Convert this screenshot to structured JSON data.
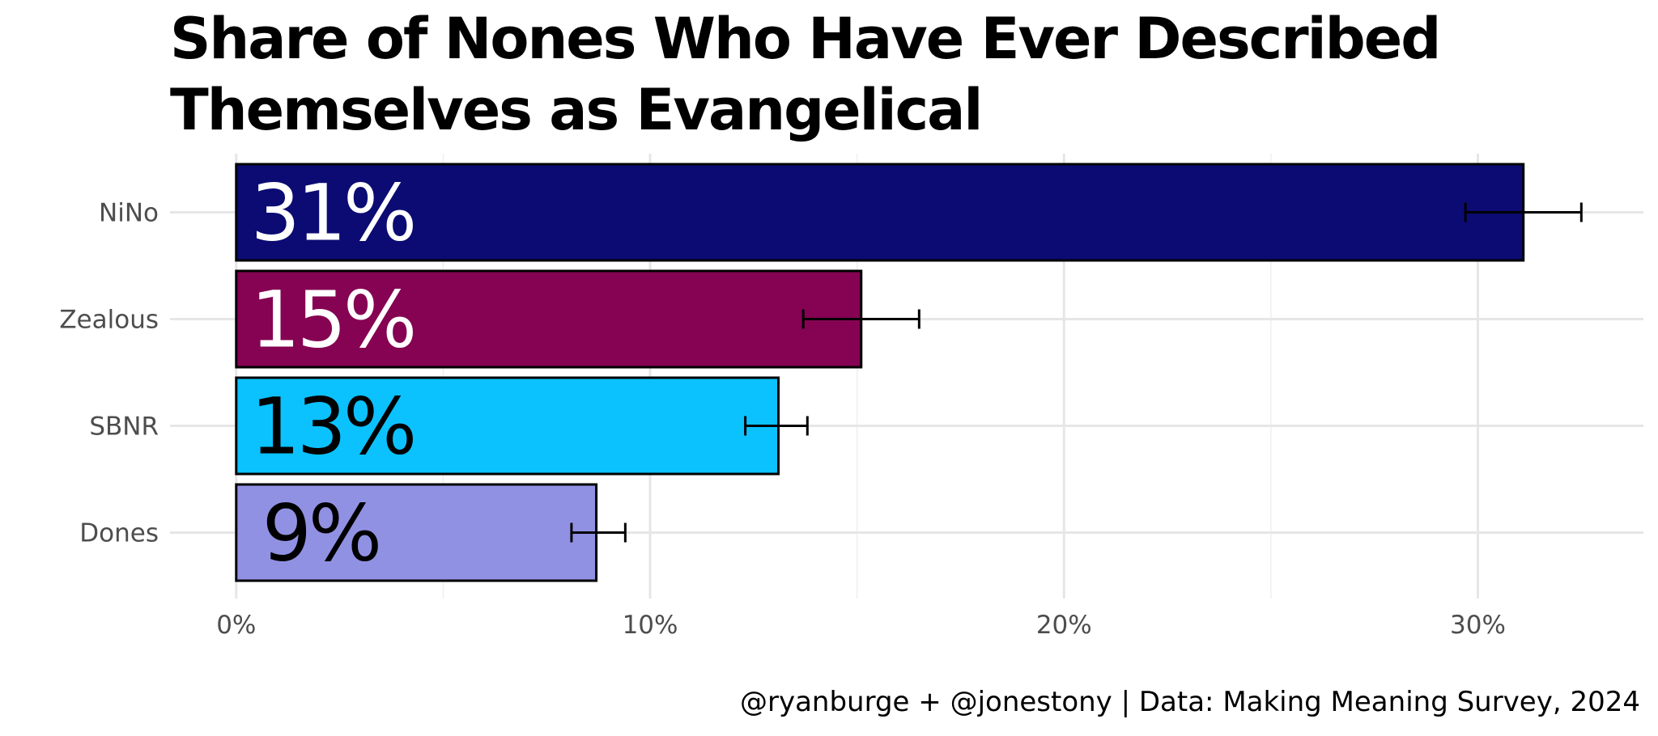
{
  "chart_data": {
    "type": "bar",
    "orientation": "horizontal",
    "title": "Share of Nones Who Have Ever Described Themselves as Evangelical",
    "categories": [
      "NiNo",
      "Zealous",
      "SBNR",
      "Dones"
    ],
    "values": [
      0.311,
      0.151,
      0.131,
      0.087
    ],
    "value_labels": [
      "31%",
      "15%",
      "13%",
      "9%"
    ],
    "error_low": [
      0.297,
      0.137,
      0.123,
      0.081
    ],
    "error_high": [
      0.325,
      0.165,
      0.138,
      0.094
    ],
    "colors": [
      "#0b0b73",
      "#850352",
      "#0bc2ff",
      "#9191e4"
    ],
    "label_colors": [
      "#ffffff",
      "#ffffff",
      "#000000",
      "#000000"
    ],
    "xlim": [
      -0.016,
      0.34
    ],
    "x_ticks": [
      0,
      0.1,
      0.2,
      0.3
    ],
    "x_tick_labels": [
      "0%",
      "10%",
      "20%",
      "30%"
    ],
    "grid": true,
    "legend": "none",
    "caption": "@ryanburge + @jonestony | Data: Making Meaning Survey, 2024"
  }
}
